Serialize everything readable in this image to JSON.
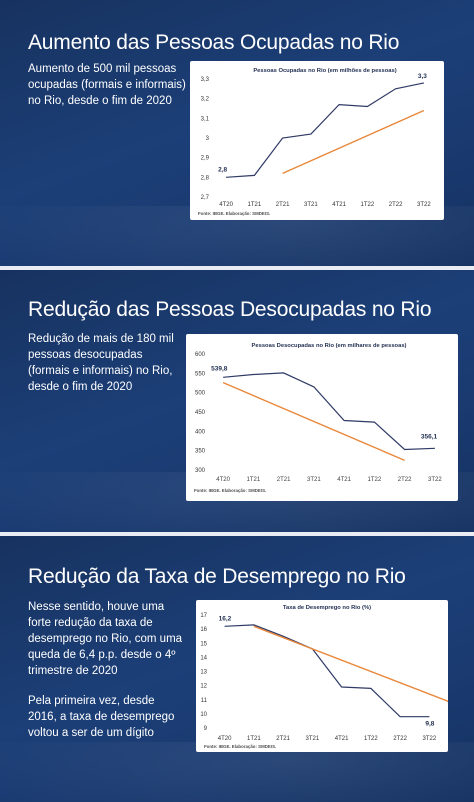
{
  "colors": {
    "series": "#2f3a66",
    "trend": "#e8873a",
    "panel": "#1c3f78",
    "text": "#ffffff"
  },
  "panels": [
    {
      "title": "Aumento das Pessoas Ocupadas no Rio",
      "description": [
        "Aumento de 500 mil pessoas ocupadas (formais e informais) no Rio, desde o fim de 2020"
      ]
    },
    {
      "title": "Redução das Pessoas Desocupadas no Rio",
      "description": [
        "Redução de mais de 180 mil pessoas desocupadas (formais e informais) no Rio, desde o fim de 2020"
      ]
    },
    {
      "title": "Redução da Taxa de Desemprego no Rio",
      "description": [
        "Nesse sentido, houve uma forte redução da taxa de desemprego no Rio, com uma queda de 6,4 p.p. desde o 4º trimestre de 2020",
        "Pela primeira vez, desde 2016, a taxa de desemprego voltou a ser de um dígito"
      ]
    }
  ],
  "chart_data": [
    {
      "type": "line",
      "title": "Pessoas Ocupadas no Rio (em milhões de pessoas)",
      "categories": [
        "4T20",
        "1T21",
        "2T21",
        "3T21",
        "4T21",
        "1T22",
        "2T22",
        "3T22"
      ],
      "series": [
        {
          "values": [
            2.8,
            2.81,
            3.0,
            3.02,
            3.17,
            3.16,
            3.25,
            3.28
          ]
        }
      ],
      "trendline": {
        "from": [
          2,
          2.82
        ],
        "to": [
          7,
          3.14
        ]
      },
      "data_labels": [
        {
          "index": 0,
          "text": "2,8"
        },
        {
          "index": 7,
          "text": "3,3"
        }
      ],
      "y_ticks": [
        "2,7",
        "2,8",
        "2,9",
        "3",
        "3,1",
        "3,2",
        "3,3"
      ],
      "ylim": [
        2.7,
        3.3
      ],
      "source": "Fonte: IBGE. Elaboração: SMDEIS."
    },
    {
      "type": "line",
      "title": "Pessoas Desocupadas no Rio (em milhares de pessoas)",
      "categories": [
        "4T20",
        "1T21",
        "2T21",
        "3T21",
        "4T21",
        "1T22",
        "2T22",
        "3T22"
      ],
      "series": [
        {
          "values": [
            539.8,
            547,
            551,
            515,
            428,
            424,
            353,
            356.1
          ]
        }
      ],
      "trendline": {
        "from": [
          0,
          526
        ],
        "to": [
          6,
          325
        ]
      },
      "data_labels": [
        {
          "index": 0,
          "text": "539,8"
        },
        {
          "index": 7,
          "text": "356,1"
        }
      ],
      "y_ticks": [
        "300",
        "350",
        "400",
        "450",
        "500",
        "550",
        "600"
      ],
      "ylim": [
        300,
        600
      ],
      "source": "Fonte: IBGE. Elaboração: SMDEIS."
    },
    {
      "type": "line",
      "title": "Taxa de Desemprego no Rio (%)",
      "categories": [
        "4T20",
        "1T21",
        "2T21",
        "3T21",
        "4T21",
        "1T22",
        "2T22",
        "3T22"
      ],
      "series": [
        {
          "values": [
            16.2,
            16.3,
            15.5,
            14.6,
            11.9,
            11.8,
            9.8,
            9.8
          ]
        }
      ],
      "trendline": {
        "from": [
          1,
          16.2
        ],
        "to": [
          8,
          10.6
        ]
      },
      "data_labels": [
        {
          "index": 0,
          "text": "16,2"
        },
        {
          "index": 7,
          "text": "9,8"
        }
      ],
      "y_ticks": [
        "9",
        "10",
        "11",
        "12",
        "13",
        "14",
        "15",
        "16",
        "17"
      ],
      "ylim": [
        9,
        17
      ],
      "source": "Fonte: IBGE. Elaboração: SMDEIS."
    }
  ]
}
